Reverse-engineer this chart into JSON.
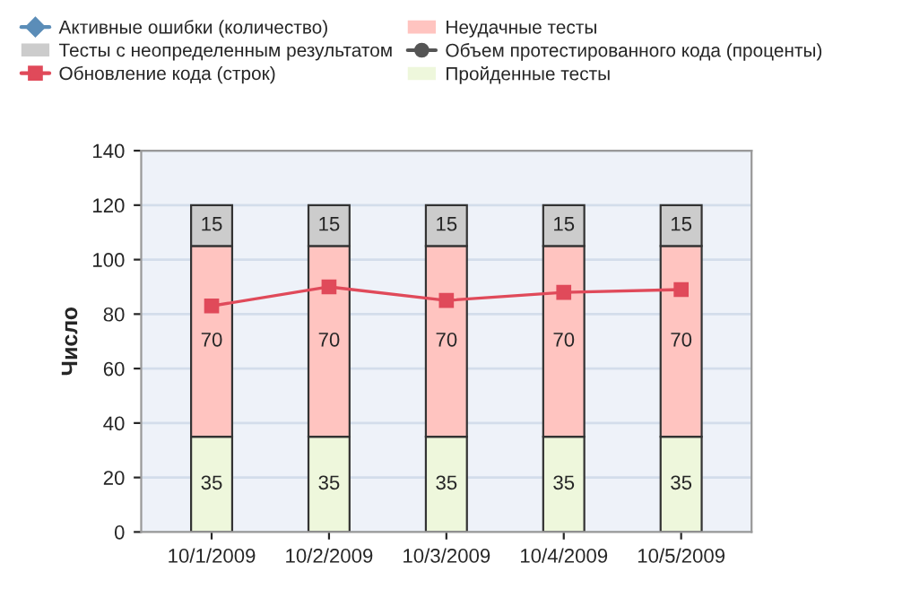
{
  "chart_data": {
    "type": "bar",
    "stacked": true,
    "ylabel": "Число",
    "categories": [
      "10/1/2009",
      "10/2/2009",
      "10/3/2009",
      "10/4/2009",
      "10/5/2009"
    ],
    "series": [
      {
        "name": "Пройденные тесты",
        "color": "#eef7dc",
        "values": [
          35,
          35,
          35,
          35,
          35
        ],
        "value_labels": [
          "35",
          "35",
          "35",
          "35",
          "35"
        ]
      },
      {
        "name": "Неудачные тесты",
        "color": "#ffc4c0",
        "values": [
          70,
          70,
          70,
          70,
          70
        ],
        "value_labels": [
          "70",
          "70",
          "70",
          "70",
          "70"
        ]
      },
      {
        "name": "Тесты с неопределенным результатом",
        "color": "#cccccc",
        "values": [
          15,
          15,
          15,
          15,
          15
        ],
        "value_labels": [
          "15",
          "15",
          "15",
          "15",
          "15"
        ]
      },
      {
        "name": "Активные ошибки (количество)",
        "type": "line",
        "color": "#5b8db8",
        "marker": "diamond",
        "values": [
          null,
          null,
          null,
          null,
          null
        ]
      },
      {
        "name": "Обновление кода (строк)",
        "type": "line",
        "color": "#e04a5a",
        "marker": "square",
        "values": [
          83,
          90,
          85,
          88,
          89
        ]
      },
      {
        "name": "Объем протестированного кода (проценты)",
        "type": "line",
        "color": "#555555",
        "marker": "circle",
        "values": [
          null,
          null,
          null,
          null,
          null
        ]
      }
    ],
    "ylim": [
      0,
      140
    ],
    "yticks": [
      0,
      20,
      40,
      60,
      80,
      100,
      120,
      140
    ],
    "grid": "y",
    "legend": "top"
  }
}
